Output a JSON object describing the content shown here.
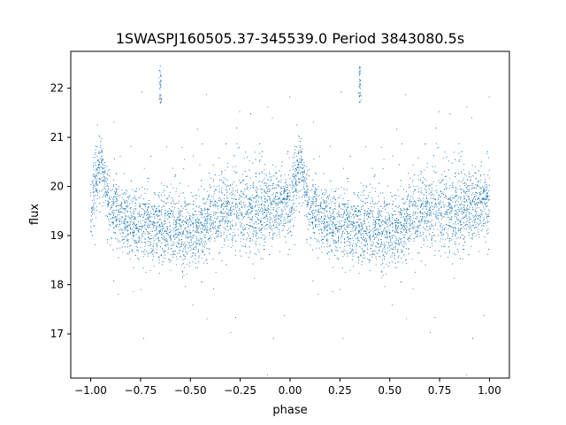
{
  "chart_data": {
    "type": "scatter",
    "title": "1SWASPJ160505.37-345539.0 Period 3843080.5s",
    "xlabel": "phase",
    "ylabel": "flux",
    "xlim": [
      -1.1,
      1.1
    ],
    "ylim": [
      16.1,
      22.75
    ],
    "x_ticks": [
      -1.0,
      -0.75,
      -0.5,
      -0.25,
      0.0,
      0.25,
      0.5,
      0.75,
      1.0
    ],
    "x_tick_labels": [
      "−1.00",
      "−0.75",
      "−0.50",
      "−0.25",
      "0.00",
      "0.25",
      "0.50",
      "0.75",
      "1.00"
    ],
    "y_ticks": [
      17,
      18,
      19,
      20,
      21,
      22
    ],
    "y_tick_labels": [
      "17",
      "18",
      "19",
      "20",
      "21",
      "22"
    ],
    "grid": false,
    "legend": "none",
    "marker_color": "#1f77b4",
    "profile": [
      {
        "phase": 0.0,
        "flux_center": 19.6,
        "spread": 0.55
      },
      {
        "phase": 0.05,
        "flux_center": 20.5,
        "spread": 0.4
      },
      {
        "phase": 0.1,
        "flux_center": 19.5,
        "spread": 0.45
      },
      {
        "phase": 0.2,
        "flux_center": 19.3,
        "spread": 0.5
      },
      {
        "phase": 0.35,
        "flux_center": 19.15,
        "spread": 0.5
      },
      {
        "phase": 0.45,
        "flux_center": 19.1,
        "spread": 0.55
      },
      {
        "phase": 0.55,
        "flux_center": 19.15,
        "spread": 0.5
      },
      {
        "phase": 0.65,
        "flux_center": 19.5,
        "spread": 0.6
      },
      {
        "phase": 0.75,
        "flux_center": 19.6,
        "spread": 0.6
      },
      {
        "phase": 0.85,
        "flux_center": 19.5,
        "spread": 0.6
      },
      {
        "phase": 0.97,
        "flux_center": 19.7,
        "spread": 0.45
      },
      {
        "phase": 1.0,
        "flux_center": 19.6,
        "spread": 0.55
      }
    ],
    "bright_clumps": [
      {
        "phase": 0.35,
        "flux_min": 21.7,
        "flux_max": 22.45
      },
      {
        "phase": -0.65,
        "flux_min": 21.7,
        "flux_max": 22.45
      }
    ]
  }
}
